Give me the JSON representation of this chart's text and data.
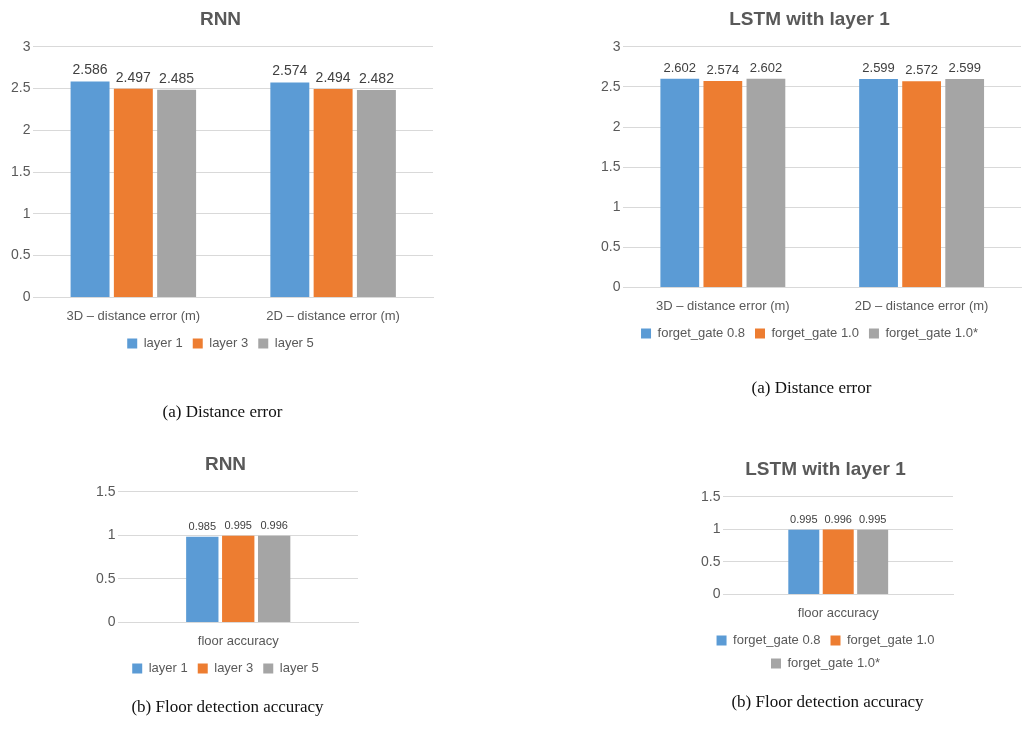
{
  "chart_data": [
    {
      "type": "bar",
      "title": "RNN",
      "categories": [
        "3D – distance error (m)",
        "2D – distance error (m)"
      ],
      "series": [
        {
          "name": "layer 1",
          "color": "#5b9bd5",
          "values": [
            2.586,
            2.574
          ]
        },
        {
          "name": "layer 3",
          "color": "#ed7d31",
          "values": [
            2.497,
            2.494
          ]
        },
        {
          "name": "layer 5",
          "color": "#a5a5a5",
          "values": [
            2.485,
            2.482
          ]
        }
      ],
      "ylim": [
        0,
        3
      ],
      "yticks": [
        0,
        0.5,
        1,
        1.5,
        2,
        2.5,
        3
      ],
      "grid": "y",
      "legend": "bottom",
      "data_labels": true,
      "annotations": [
        "(a) Distance error"
      ]
    },
    {
      "type": "bar",
      "title": "LSTM with layer 1",
      "categories": [
        "3D – distance error (m)",
        "2D – distance error (m)"
      ],
      "series": [
        {
          "name": "forget_gate 0.8",
          "color": "#5b9bd5",
          "values": [
            2.602,
            2.599
          ]
        },
        {
          "name": "forget_gate 1.0",
          "color": "#ed7d31",
          "values": [
            2.574,
            2.572
          ]
        },
        {
          "name": "forget_gate 1.0*",
          "color": "#a5a5a5",
          "values": [
            2.602,
            2.599
          ]
        }
      ],
      "ylim": [
        0,
        3
      ],
      "yticks": [
        0,
        0.5,
        1,
        1.5,
        2,
        2.5,
        3
      ],
      "grid": "y",
      "legend": "bottom",
      "data_labels": true,
      "annotations": [
        "(a) Distance error"
      ]
    },
    {
      "type": "bar",
      "title": "RNN",
      "categories": [
        "floor accuracy"
      ],
      "series": [
        {
          "name": "layer 1",
          "color": "#5b9bd5",
          "values": [
            0.985
          ]
        },
        {
          "name": "layer 3",
          "color": "#ed7d31",
          "values": [
            0.995
          ]
        },
        {
          "name": "layer 5",
          "color": "#a5a5a5",
          "values": [
            0.996
          ]
        }
      ],
      "ylim": [
        0,
        1.5
      ],
      "yticks": [
        0,
        0.5,
        1,
        1.5
      ],
      "grid": "y",
      "legend": "bottom",
      "data_labels": true,
      "annotations": [
        "(b) Floor detection accuracy"
      ]
    },
    {
      "type": "bar",
      "title": "LSTM with layer 1",
      "categories": [
        "floor accuracy"
      ],
      "series": [
        {
          "name": "forget_gate 0.8",
          "color": "#5b9bd5",
          "values": [
            0.995
          ]
        },
        {
          "name": "forget_gate 1.0",
          "color": "#ed7d31",
          "values": [
            0.996
          ]
        },
        {
          "name": "forget_gate 1.0*",
          "color": "#a5a5a5",
          "values": [
            0.995
          ]
        }
      ],
      "ylim": [
        0,
        1.5
      ],
      "yticks": [
        0,
        0.5,
        1,
        1.5
      ],
      "grid": "y",
      "legend": "bottom",
      "data_labels": true,
      "annotations": [
        "(b) Floor detection accuracy"
      ]
    }
  ]
}
